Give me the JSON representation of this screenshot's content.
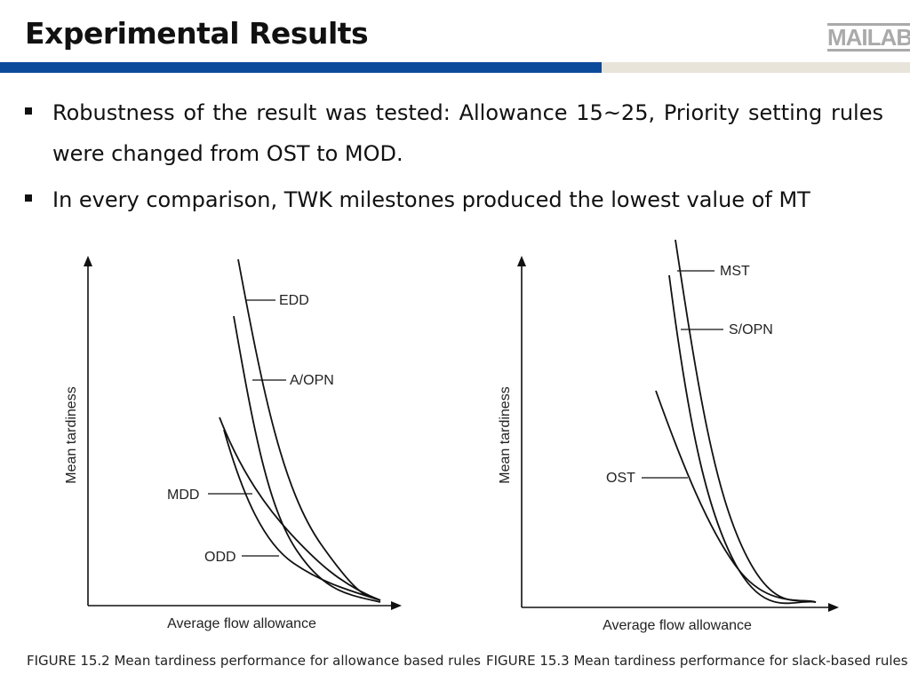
{
  "title": "Experimental Results",
  "logo": "MAILAB",
  "colors": {
    "accent_bar": "#0c4a9b",
    "secondary_bar": "#e8e4da"
  },
  "bullets": [
    "Robustness of the result was tested: Allowance 15~25, Priority setting rules were changed from OST to MOD.",
    "In every comparison, TWK milestones produced the lowest value of MT"
  ],
  "figures": [
    {
      "caption": "FIGURE 15.2 Mean tardiness performance for allowance based rules",
      "xlabel": "Average flow allowance",
      "ylabel": "Mean tardiness",
      "curves": [
        "EDD",
        "A/OPN",
        "MDD",
        "ODD"
      ]
    },
    {
      "caption": "FIGURE 15.3 Mean tardiness performance for slack-based rules",
      "xlabel": "Average flow allowance",
      "ylabel": "Mean tardiness",
      "curves": [
        "MST",
        "S/OPN",
        "OST"
      ]
    }
  ]
}
